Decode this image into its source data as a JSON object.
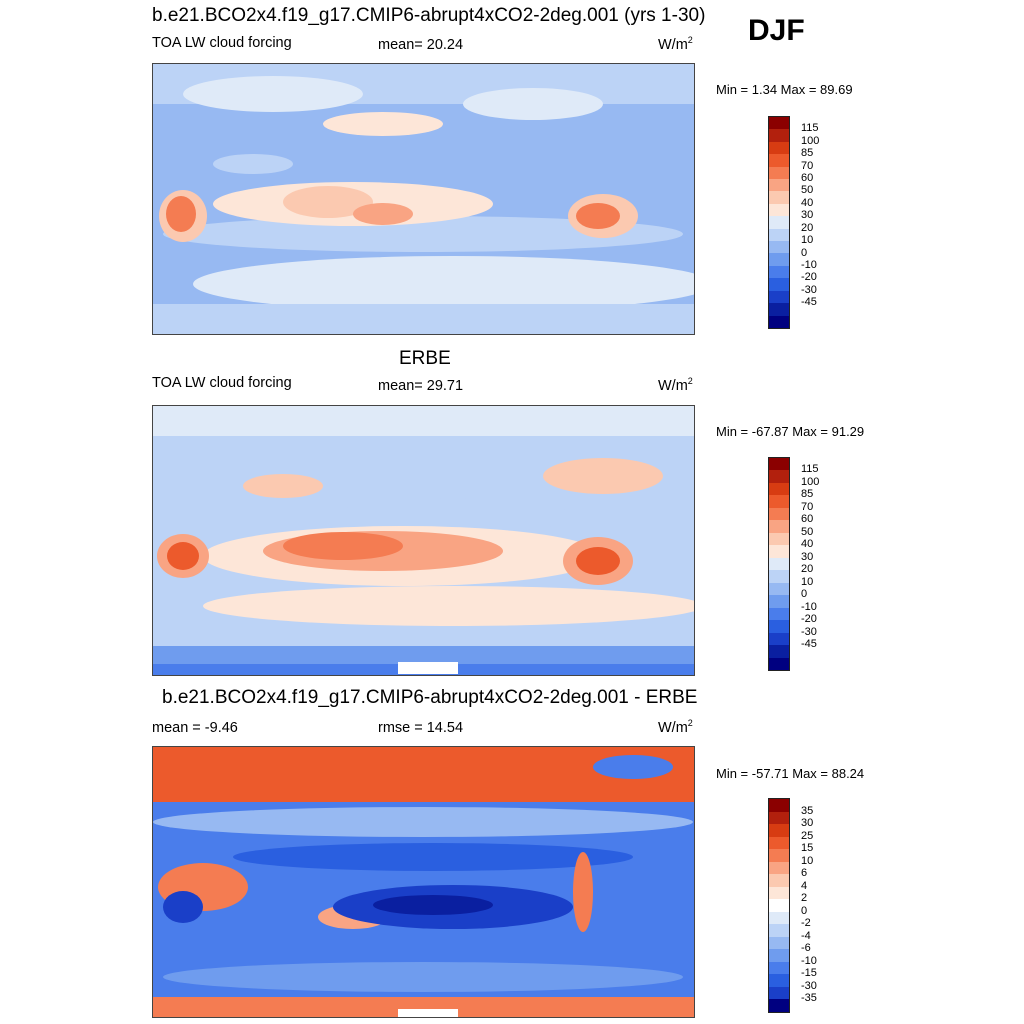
{
  "season": "DJF",
  "panels": [
    {
      "title": "b.e21.BCO2x4.f19_g17.CMIP6-abrupt4xCO2-2deg.001 (yrs 1-30)",
      "left_label": "TOA LW cloud forcing",
      "center_label": "mean=  20.24",
      "unit": "W/m",
      "unit_sup": "2",
      "minmax": "Min =   1.34 Max =  89.69",
      "colorbar": {
        "labels": [
          "115",
          "100",
          "85",
          "70",
          "60",
          "50",
          "40",
          "30",
          "20",
          "10",
          "0",
          "-10",
          "-20",
          "-30",
          "-45"
        ],
        "colors": [
          "#8b0000",
          "#b2200d",
          "#d73c12",
          "#ec5a2c",
          "#f47c52",
          "#f9a483",
          "#fbc9b0",
          "#fde6d8",
          "#dfeaf8",
          "#bcd3f6",
          "#97b9f2",
          "#6f9cee",
          "#4a7deb",
          "#2a5fe0",
          "#1a3fc8",
          "#0a1fa0",
          "#000080"
        ]
      }
    },
    {
      "title": "ERBE",
      "left_label": "TOA LW cloud forcing",
      "center_label": "mean=  29.71",
      "unit": "W/m",
      "unit_sup": "2",
      "minmax": "Min = -67.87 Max =  91.29",
      "colorbar": {
        "labels": [
          "115",
          "100",
          "85",
          "70",
          "60",
          "50",
          "40",
          "30",
          "20",
          "10",
          "0",
          "-10",
          "-20",
          "-30",
          "-45"
        ],
        "colors": [
          "#8b0000",
          "#b2200d",
          "#d73c12",
          "#ec5a2c",
          "#f47c52",
          "#f9a483",
          "#fbc9b0",
          "#fde6d8",
          "#dfeaf8",
          "#bcd3f6",
          "#97b9f2",
          "#6f9cee",
          "#4a7deb",
          "#2a5fe0",
          "#1a3fc8",
          "#0a1fa0",
          "#000080"
        ]
      }
    },
    {
      "title": "b.e21.BCO2x4.f19_g17.CMIP6-abrupt4xCO2-2deg.001 - ERBE",
      "left_label": "mean =  -9.46",
      "center_label": "rmse =  14.54",
      "unit": "W/m",
      "unit_sup": "2",
      "minmax": "Min = -57.71 Max =  88.24",
      "colorbar": {
        "labels": [
          "35",
          "30",
          "25",
          "15",
          "10",
          "6",
          "4",
          "2",
          "0",
          "-2",
          "-4",
          "-6",
          "-10",
          "-15",
          "-30",
          "-35"
        ],
        "colors": [
          "#8b0000",
          "#b2200d",
          "#d73c12",
          "#ec5a2c",
          "#f47c52",
          "#f9a483",
          "#fbc9b0",
          "#fde6d8",
          "#ffffff",
          "#dfeaf8",
          "#bcd3f6",
          "#97b9f2",
          "#6f9cee",
          "#4a7deb",
          "#2a5fe0",
          "#1a3fc8",
          "#000080"
        ]
      }
    }
  ],
  "chart_data": [
    {
      "type": "heatmap",
      "title": "b.e21.BCO2x4.f19_g17.CMIP6-abrupt4xCO2-2deg.001 (yrs 1-30)",
      "variable": "TOA LW cloud forcing",
      "units": "W/m2",
      "season": "DJF",
      "mean": 20.24,
      "min": 1.34,
      "max": 89.69,
      "contour_levels": [
        -45,
        -30,
        -20,
        -10,
        0,
        10,
        20,
        30,
        40,
        50,
        60,
        70,
        85,
        100,
        115
      ]
    },
    {
      "type": "heatmap",
      "title": "ERBE",
      "variable": "TOA LW cloud forcing",
      "units": "W/m2",
      "season": "DJF",
      "mean": 29.71,
      "min": -67.87,
      "max": 91.29,
      "contour_levels": [
        -45,
        -30,
        -20,
        -10,
        0,
        10,
        20,
        30,
        40,
        50,
        60,
        70,
        85,
        100,
        115
      ]
    },
    {
      "type": "heatmap",
      "title": "b.e21.BCO2x4.f19_g17.CMIP6-abrupt4xCO2-2deg.001 - ERBE",
      "units": "W/m2",
      "season": "DJF",
      "mean": -9.46,
      "rmse": 14.54,
      "min": -57.71,
      "max": 88.24,
      "contour_levels": [
        -35,
        -30,
        -15,
        -10,
        -6,
        -4,
        -2,
        0,
        2,
        4,
        6,
        10,
        15,
        25,
        30,
        35
      ]
    }
  ]
}
